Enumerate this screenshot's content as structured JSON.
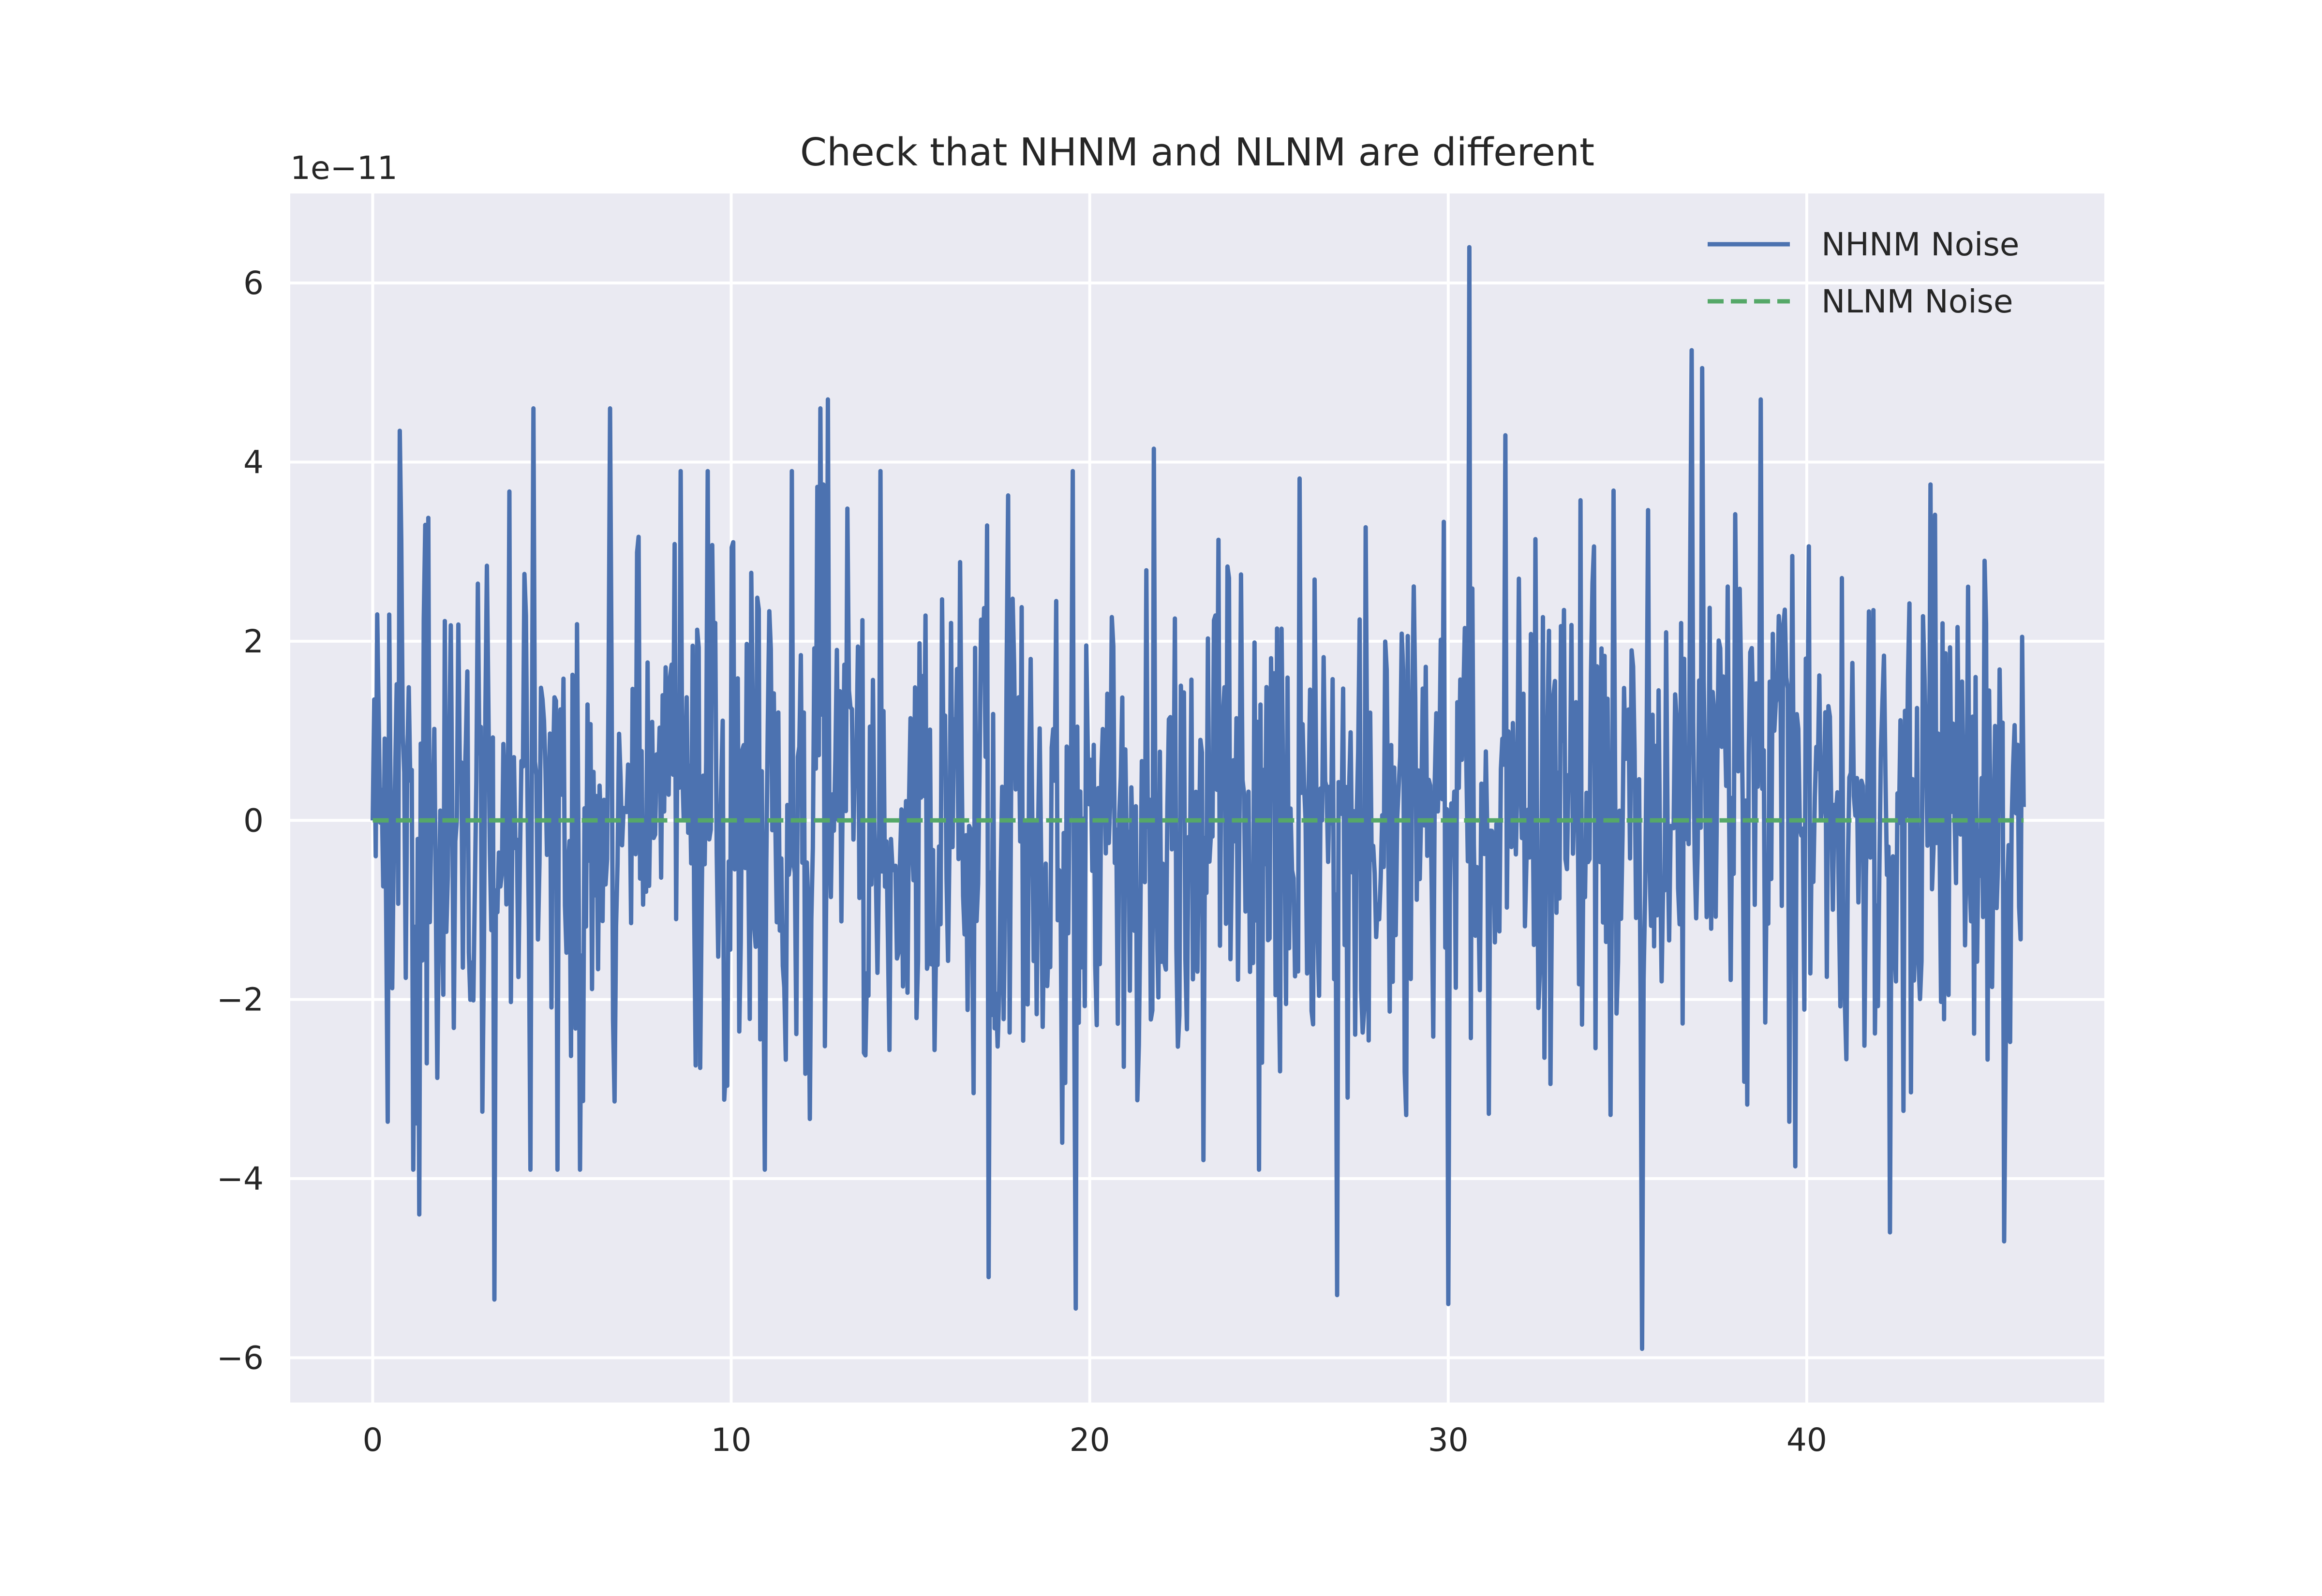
{
  "chart_data": {
    "type": "line",
    "title": "Check that NHNM and NLNM are different",
    "xlabel": "",
    "ylabel": "",
    "y_scale_label": "1e−11",
    "xlim": [
      -2.3,
      48.3
    ],
    "ylim": [
      -6.5,
      7.0
    ],
    "x_ticks": [
      0,
      10,
      20,
      30,
      40
    ],
    "x_tick_labels": [
      "0",
      "10",
      "20",
      "30",
      "40"
    ],
    "y_ticks": [
      -6,
      -4,
      -2,
      0,
      2,
      4,
      6
    ],
    "y_tick_labels": [
      "−6",
      "−4",
      "−2",
      "0",
      "2",
      "4",
      "6"
    ],
    "grid": true,
    "legend_position": "top-right",
    "series": [
      {
        "name": "NHNM Noise",
        "color": "#4c72b0",
        "style": "solid",
        "x_range": [
          0,
          46.05
        ],
        "num_points": 1100,
        "noise_std": 1.55,
        "peaks": [
          {
            "x": 0.75,
            "y": 4.35
          },
          {
            "x": 1.3,
            "y": -4.4
          },
          {
            "x": 3.4,
            "y": -5.35
          },
          {
            "x": 4.5,
            "y": 4.6
          },
          {
            "x": 6.6,
            "y": 4.6
          },
          {
            "x": 12.5,
            "y": 4.6
          },
          {
            "x": 12.7,
            "y": 4.7
          },
          {
            "x": 17.2,
            "y": -5.1
          },
          {
            "x": 19.6,
            "y": -5.45
          },
          {
            "x": 21.8,
            "y": 4.15
          },
          {
            "x": 26.9,
            "y": -5.3
          },
          {
            "x": 30.0,
            "y": -5.4
          },
          {
            "x": 30.6,
            "y": 6.4
          },
          {
            "x": 31.6,
            "y": 4.3
          },
          {
            "x": 35.4,
            "y": -5.9
          },
          {
            "x": 36.8,
            "y": 5.25
          },
          {
            "x": 37.1,
            "y": 5.05
          },
          {
            "x": 38.7,
            "y": 4.7
          },
          {
            "x": 42.3,
            "y": -4.6
          },
          {
            "x": 45.5,
            "y": -4.7
          }
        ]
      },
      {
        "name": "NLNM Noise",
        "color": "#55a868",
        "style": "dashed",
        "x": [
          0,
          46.05
        ],
        "y": [
          0,
          0
        ]
      }
    ]
  }
}
